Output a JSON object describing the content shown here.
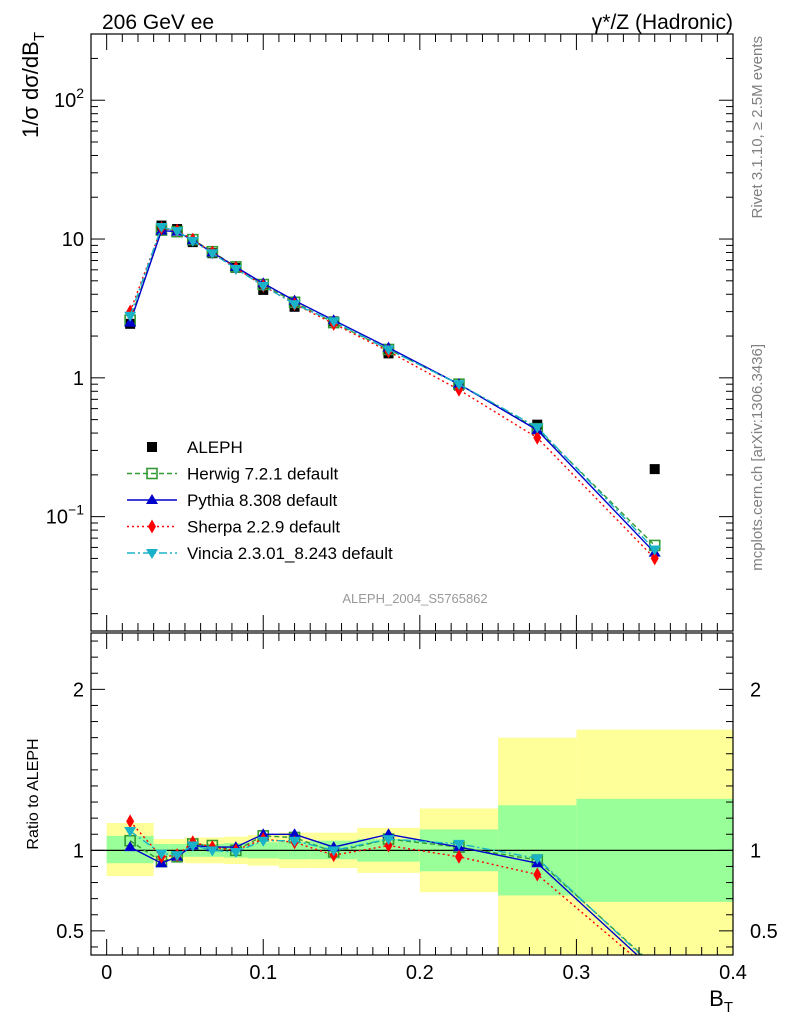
{
  "header": {
    "left": "206 GeV ee",
    "right": "γ*/Z (Hadronic)"
  },
  "side_text": {
    "top": "Rivet 3.1.10, ≥ 2.5M events",
    "bottom": "mcplots.cern.ch [arXiv:1306.3436]"
  },
  "analysis_id": "ALEPH_2004_S5765862",
  "colors": {
    "data": "#000000",
    "herwig": "#339933",
    "pythia": "#0000cc",
    "sherpa": "#ff0000",
    "vincia": "#1ab2c8",
    "band_inner": "#99ff99",
    "band_outer": "#ffff99"
  },
  "chart_data": [
    {
      "type": "scatter",
      "panel": "main",
      "ylabel": "1/σ dσ/dB_T",
      "yscale": "log",
      "ylim": [
        0.015,
        300
      ],
      "xlim": [
        -0.01,
        0.4
      ],
      "yticks": [
        {
          "value": 0.1,
          "label": "10^-1"
        },
        {
          "value": 1,
          "label": "1"
        },
        {
          "value": 10,
          "label": "10"
        },
        {
          "value": 100,
          "label": "10^2"
        }
      ],
      "legend_position": "bottom-left",
      "series": [
        {
          "name": "ALEPH",
          "key": "data",
          "marker": "square",
          "x": [
            0.015,
            0.035,
            0.045,
            0.055,
            0.0675,
            0.0825,
            0.1,
            0.12,
            0.145,
            0.18,
            0.225,
            0.275,
            0.35
          ],
          "y": [
            2.45,
            12.5,
            11.8,
            9.5,
            7.9,
            6.2,
            4.3,
            3.25,
            2.55,
            1.5,
            0.88,
            0.46,
            0.22
          ]
        },
        {
          "name": "Herwig 7.2.1 default",
          "key": "herwig",
          "marker": "open-square",
          "dash": "5,3",
          "x": [
            0.015,
            0.035,
            0.045,
            0.055,
            0.0675,
            0.0825,
            0.1,
            0.12,
            0.145,
            0.18,
            0.225,
            0.275,
            0.35
          ],
          "y": [
            2.6,
            11.6,
            11.3,
            9.9,
            8.1,
            6.3,
            4.7,
            3.5,
            2.5,
            1.6,
            0.9,
            0.43,
            0.062
          ]
        },
        {
          "name": "Pythia 8.308 default",
          "key": "pythia",
          "marker": "triangle-up",
          "dash": "",
          "x": [
            0.015,
            0.035,
            0.045,
            0.055,
            0.0675,
            0.0825,
            0.1,
            0.12,
            0.145,
            0.18,
            0.225,
            0.275,
            0.35
          ],
          "y": [
            2.5,
            11.5,
            11.3,
            9.8,
            8.0,
            6.3,
            4.8,
            3.6,
            2.6,
            1.65,
            0.9,
            0.42,
            0.055
          ]
        },
        {
          "name": "Sherpa 2.2.9 default",
          "key": "sherpa",
          "marker": "diamond",
          "dash": "2,3",
          "x": [
            0.015,
            0.035,
            0.045,
            0.055,
            0.0675,
            0.0825,
            0.1,
            0.12,
            0.145,
            0.18,
            0.225,
            0.275,
            0.35
          ],
          "y": [
            3.0,
            12.0,
            11.5,
            9.9,
            8.0,
            6.2,
            4.6,
            3.4,
            2.45,
            1.55,
            0.82,
            0.37,
            0.05
          ]
        },
        {
          "name": "Vincia 2.3.01_8.243 default",
          "key": "vincia",
          "marker": "triangle-down",
          "dash": "8,3,2,3",
          "x": [
            0.015,
            0.035,
            0.045,
            0.055,
            0.0675,
            0.0825,
            0.1,
            0.12,
            0.145,
            0.18,
            0.225,
            0.275,
            0.35
          ],
          "y": [
            2.8,
            12.2,
            11.4,
            9.7,
            7.9,
            6.1,
            4.6,
            3.4,
            2.55,
            1.6,
            0.9,
            0.44,
            0.058
          ]
        }
      ]
    },
    {
      "type": "line",
      "panel": "ratio",
      "ylabel": "Ratio to ALEPH",
      "xlabel": "B_T",
      "xlim": [
        -0.01,
        0.4
      ],
      "ylim": [
        0.35,
        2.35
      ],
      "yticks": [
        {
          "value": 0.5,
          "label": "0.5"
        },
        {
          "value": 1,
          "label": "1"
        },
        {
          "value": 2,
          "label": "2"
        }
      ],
      "xticks": [
        {
          "value": 0,
          "label": "0"
        },
        {
          "value": 0.1,
          "label": "0.1"
        },
        {
          "value": 0.2,
          "label": "0.2"
        },
        {
          "value": 0.3,
          "label": "0.3"
        },
        {
          "value": 0.4,
          "label": "0.4"
        }
      ],
      "bands": [
        {
          "x0": 0.0,
          "x1": 0.03,
          "outer": [
            0.84,
            1.17
          ],
          "inner": [
            0.92,
            1.09
          ]
        },
        {
          "x0": 0.03,
          "x1": 0.04,
          "outer": [
            0.93,
            1.07
          ],
          "inner": [
            0.96,
            1.04
          ]
        },
        {
          "x0": 0.04,
          "x1": 0.05,
          "outer": [
            0.93,
            1.07
          ],
          "inner": [
            0.96,
            1.04
          ]
        },
        {
          "x0": 0.05,
          "x1": 0.06,
          "outer": [
            0.92,
            1.08
          ],
          "inner": [
            0.96,
            1.04
          ]
        },
        {
          "x0": 0.06,
          "x1": 0.075,
          "outer": [
            0.92,
            1.08
          ],
          "inner": [
            0.96,
            1.04
          ]
        },
        {
          "x0": 0.075,
          "x1": 0.09,
          "outer": [
            0.915,
            1.085
          ],
          "inner": [
            0.955,
            1.045
          ]
        },
        {
          "x0": 0.09,
          "x1": 0.11,
          "outer": [
            0.905,
            1.095
          ],
          "inner": [
            0.95,
            1.05
          ]
        },
        {
          "x0": 0.11,
          "x1": 0.13,
          "outer": [
            0.89,
            1.11
          ],
          "inner": [
            0.945,
            1.055
          ]
        },
        {
          "x0": 0.13,
          "x1": 0.16,
          "outer": [
            0.89,
            1.11
          ],
          "inner": [
            0.945,
            1.06
          ]
        },
        {
          "x0": 0.16,
          "x1": 0.2,
          "outer": [
            0.86,
            1.14
          ],
          "inner": [
            0.93,
            1.07
          ]
        },
        {
          "x0": 0.2,
          "x1": 0.25,
          "outer": [
            0.74,
            1.26
          ],
          "inner": [
            0.87,
            1.13
          ]
        },
        {
          "x0": 0.25,
          "x1": 0.3,
          "outer": [
            0.35,
            1.7
          ],
          "inner": [
            0.72,
            1.28
          ]
        },
        {
          "x0": 0.3,
          "x1": 0.4,
          "outer": [
            0.35,
            1.75
          ],
          "inner": [
            0.68,
            1.32
          ]
        }
      ],
      "series": [
        {
          "name": "Herwig 7.2.1 default",
          "key": "herwig",
          "x": [
            0.015,
            0.035,
            0.045,
            0.055,
            0.0675,
            0.0825,
            0.1,
            0.12,
            0.145,
            0.18,
            0.225,
            0.275,
            0.35
          ],
          "y": [
            1.06,
            0.93,
            0.96,
            1.04,
            1.03,
            1.0,
            1.09,
            1.08,
            0.99,
            1.07,
            1.02,
            0.94,
            0.28
          ]
        },
        {
          "name": "Pythia 8.308 default",
          "key": "pythia",
          "x": [
            0.015,
            0.035,
            0.045,
            0.055,
            0.0675,
            0.0825,
            0.1,
            0.12,
            0.145,
            0.18,
            0.225,
            0.275,
            0.35
          ],
          "y": [
            1.02,
            0.92,
            0.96,
            1.03,
            1.02,
            1.02,
            1.1,
            1.1,
            1.02,
            1.1,
            1.02,
            0.92,
            0.25
          ]
        },
        {
          "name": "Sherpa 2.2.9 default",
          "key": "sherpa",
          "x": [
            0.015,
            0.035,
            0.045,
            0.055,
            0.0675,
            0.0825,
            0.1,
            0.12,
            0.145,
            0.18,
            0.225,
            0.275,
            0.35
          ],
          "y": [
            1.18,
            0.96,
            0.97,
            1.05,
            1.02,
            1.0,
            1.07,
            1.05,
            0.97,
            1.03,
            0.96,
            0.85,
            0.23
          ]
        },
        {
          "name": "Vincia 2.3.01_8.243 default",
          "key": "vincia",
          "x": [
            0.015,
            0.035,
            0.045,
            0.055,
            0.0675,
            0.0825,
            0.1,
            0.12,
            0.145,
            0.18,
            0.225,
            0.275,
            0.35
          ],
          "y": [
            1.12,
            0.98,
            0.97,
            1.03,
            1.0,
            0.99,
            1.06,
            1.06,
            1.0,
            1.07,
            1.04,
            0.95,
            0.27
          ]
        }
      ]
    }
  ]
}
